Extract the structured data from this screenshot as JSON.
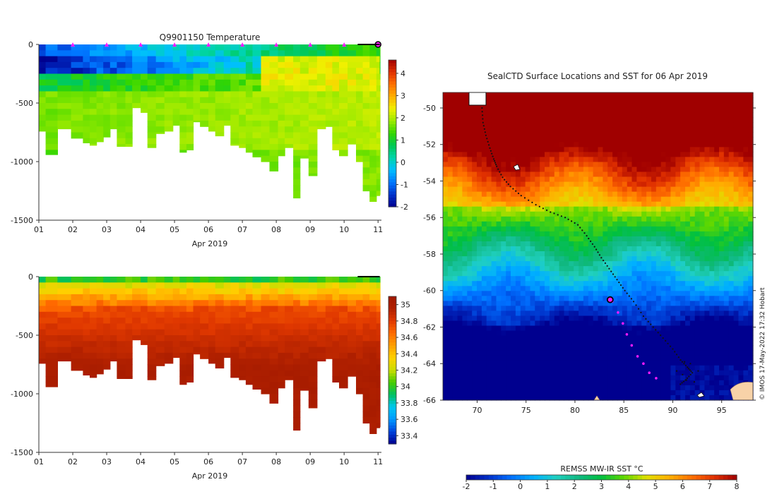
{
  "colors": {
    "temp_scale": [
      "#00008f",
      "#0033cc",
      "#0077ff",
      "#00bfff",
      "#00d5aa",
      "#00c853",
      "#33d600",
      "#9aea00",
      "#f0f000",
      "#ffb000",
      "#ff7000",
      "#e03000",
      "#a00000"
    ],
    "sal_scale": [
      "#00008f",
      "#0044dd",
      "#0099ff",
      "#00c8f0",
      "#00c060",
      "#44cc00",
      "#ccdd00",
      "#ffd000",
      "#ffa000",
      "#ff6a00",
      "#e03800",
      "#b02000",
      "#a01800"
    ],
    "sst_scale": [
      "#00008f",
      "#0030c8",
      "#0070ff",
      "#00b0ff",
      "#20d0c0",
      "#10b880",
      "#00c040",
      "#60d800",
      "#e0e000",
      "#ffb000",
      "#ff7000",
      "#e03000",
      "#a00000"
    ],
    "track_dot": "#111111",
    "track_recent": "#ff1aff",
    "land": "#f8d2a8"
  },
  "chart_data": [
    {
      "type": "heatmap",
      "id": "temperature-section",
      "title": "Q9901150  Temperature",
      "xlabel": "Apr 2019",
      "ylabel": "",
      "x_tick_labels": [
        "01",
        "02",
        "03",
        "04",
        "05",
        "06",
        "07",
        "08",
        "09",
        "10",
        "11"
      ],
      "y_ticks": [
        0,
        -500,
        -1000,
        -1500
      ],
      "ylim": [
        -1500,
        0
      ],
      "xlim": [
        1,
        11.1
      ],
      "colorbar": {
        "ticks": [
          "4",
          "3",
          "2",
          "1",
          "0",
          "-1",
          "-2"
        ],
        "range": [
          -2,
          4.6
        ]
      },
      "markers_x": [
        2,
        3,
        4,
        5,
        6,
        7,
        8,
        9,
        10
      ],
      "current_marker_x": 11,
      "profile_times": [
        1.0,
        1.2,
        1.55,
        1.95,
        2.3,
        2.5,
        2.7,
        2.9,
        3.1,
        3.3,
        3.55,
        3.75,
        4.0,
        4.2,
        4.45,
        4.7,
        4.95,
        5.15,
        5.35,
        5.55,
        5.75,
        6.0,
        6.2,
        6.45,
        6.65,
        6.9,
        7.1,
        7.3,
        7.55,
        7.8,
        8.05,
        8.25,
        8.5,
        8.7,
        8.95,
        9.2,
        9.45,
        9.65,
        9.85,
        10.1,
        10.35,
        10.55,
        10.75,
        10.95,
        11.05
      ],
      "profile_depths": [
        -740,
        -940,
        -720,
        -800,
        -840,
        -860,
        -830,
        -790,
        -720,
        -870,
        -870,
        -540,
        -580,
        -880,
        -760,
        -740,
        -690,
        -920,
        -900,
        -660,
        -700,
        -740,
        -780,
        -690,
        -860,
        -880,
        -920,
        -960,
        -1000,
        -1080,
        -950,
        -880,
        -1310,
        -970,
        -1120,
        -720,
        -700,
        -900,
        -950,
        -850,
        -1000,
        -1250,
        -1340,
        -1290,
        -1280
      ]
    },
    {
      "type": "heatmap",
      "id": "salinity-section",
      "title": "",
      "xlabel": "Apr 2019",
      "x_tick_labels": [
        "01",
        "02",
        "03",
        "04",
        "05",
        "06",
        "07",
        "08",
        "09",
        "10",
        "11"
      ],
      "y_ticks": [
        0,
        -500,
        -1000,
        -1500
      ],
      "ylim": [
        -1500,
        0
      ],
      "xlim": [
        1,
        11.1
      ],
      "colorbar": {
        "ticks": [
          "35",
          "34.8",
          "34.6",
          "34.4",
          "34.2",
          "34",
          "33.8",
          "33.6",
          "33.4"
        ],
        "range": [
          33.3,
          35.1
        ]
      }
    },
    {
      "type": "heatmap",
      "id": "sst-map",
      "title": "SealCTD Surface Locations and SST for 06 Apr 2019",
      "x_tick_labels": [
        "70",
        "75",
        "80",
        "85",
        "90",
        "95"
      ],
      "x_ticks": [
        70,
        75,
        80,
        85,
        90,
        95
      ],
      "y_tick_labels": [
        "-50",
        "-52",
        "-54",
        "-56",
        "-58",
        "-60",
        "-62",
        "-64",
        "-66"
      ],
      "y_ticks": [
        -50,
        -52,
        -54,
        -56,
        -58,
        -60,
        -62,
        -64,
        -66
      ],
      "xlim": [
        66.5,
        98.2
      ],
      "ylim": [
        -66,
        -49.15
      ],
      "colorbar": {
        "label": "REMSS MW-IR SST °C",
        "ticks": [
          "-2",
          "-1",
          "0",
          "1",
          "2",
          "3",
          "4",
          "5",
          "6",
          "7",
          "8"
        ],
        "range": [
          -2,
          8
        ]
      },
      "credit": "© IMOS 17-May-2022 17:32 Hobart",
      "track": [
        [
          70.5,
          -50.0
        ],
        [
          70.6,
          -50.8
        ],
        [
          70.9,
          -51.5
        ],
        [
          71.3,
          -52.2
        ],
        [
          71.7,
          -52.8
        ],
        [
          72.0,
          -53.2
        ],
        [
          72.6,
          -53.8
        ],
        [
          73.4,
          -54.3
        ],
        [
          74.5,
          -54.8
        ],
        [
          76.0,
          -55.3
        ],
        [
          77.5,
          -55.7
        ],
        [
          79.0,
          -56.0
        ],
        [
          80.3,
          -56.4
        ],
        [
          81.2,
          -57.0
        ],
        [
          82.0,
          -57.6
        ],
        [
          82.7,
          -58.2
        ],
        [
          83.5,
          -58.8
        ],
        [
          84.3,
          -59.4
        ],
        [
          85.1,
          -60.0
        ],
        [
          86.0,
          -60.6
        ],
        [
          87.0,
          -61.4
        ],
        [
          88.0,
          -62.0
        ],
        [
          89.0,
          -62.6
        ],
        [
          90.0,
          -63.2
        ],
        [
          90.8,
          -63.8
        ],
        [
          91.5,
          -64.2
        ],
        [
          92.0,
          -64.5
        ],
        [
          91.3,
          -64.9
        ],
        [
          90.6,
          -65.2
        ]
      ],
      "recent_track": [
        [
          83.8,
          -60.6
        ],
        [
          84.4,
          -61.2
        ],
        [
          84.9,
          -61.8
        ],
        [
          85.3,
          -62.4
        ],
        [
          85.8,
          -63.0
        ],
        [
          86.4,
          -63.6
        ],
        [
          87.0,
          -64.0
        ],
        [
          87.6,
          -64.5
        ],
        [
          88.3,
          -64.8
        ]
      ],
      "current_position": [
        83.6,
        -60.5
      ]
    }
  ]
}
